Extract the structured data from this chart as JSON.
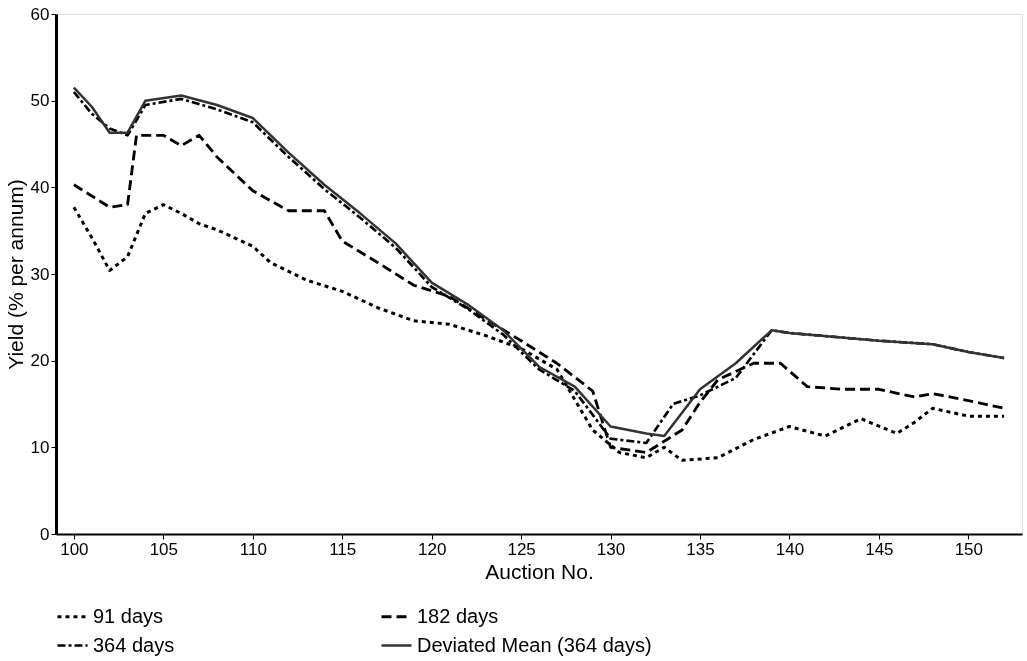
{
  "chart_data": {
    "type": "line",
    "xlabel": "Auction No.",
    "ylabel": "Yield (% per annum)",
    "xlim": [
      99,
      153
    ],
    "xticks": [
      100,
      105,
      110,
      115,
      120,
      125,
      130,
      135,
      140,
      145,
      150
    ],
    "ylim": [
      0,
      60
    ],
    "yticks": [
      0,
      10,
      20,
      30,
      40,
      50,
      60
    ],
    "grid": false,
    "legend": "bottom",
    "marker": "none",
    "series": [
      {
        "name": "91 days",
        "color": "#000000",
        "line_style": "dotted",
        "x": [
          100,
          101,
          102,
          103,
          104,
          105,
          106,
          107,
          108,
          110,
          111,
          113,
          115,
          117,
          119,
          121,
          123,
          125,
          127,
          129,
          130.5,
          132,
          133,
          134,
          136,
          138,
          140,
          142,
          144,
          146,
          147,
          148,
          150,
          152
        ],
        "values": [
          37.7,
          34.2,
          30.4,
          32,
          37,
          38,
          37,
          35.8,
          35.1,
          33.2,
          31.3,
          29.3,
          28,
          26.1,
          24.6,
          24.2,
          22.9,
          21.4,
          19,
          12,
          9.4,
          8.8,
          10,
          8.5,
          8.8,
          10.9,
          12.4,
          11.3,
          13.3,
          11.6,
          12.9,
          14.5,
          13.6,
          13.6
        ]
      },
      {
        "name": "182 days",
        "color": "#000000",
        "line_style": "dashed",
        "x": [
          100,
          102,
          103,
          103.5,
          105,
          106,
          107,
          108,
          110,
          112,
          114,
          115,
          117,
          119,
          121,
          123,
          125,
          127,
          129,
          130,
          132,
          134,
          135,
          136,
          138,
          139.5,
          141,
          143,
          145,
          147,
          148,
          150,
          152
        ],
        "values": [
          40.3,
          37.7,
          38,
          46,
          46,
          44.8,
          46,
          43.5,
          39.6,
          37.3,
          37.3,
          33.8,
          31.3,
          28.7,
          27.4,
          24.8,
          22.3,
          19.7,
          16.5,
          10,
          9.4,
          12,
          15.2,
          17.8,
          19.7,
          19.7,
          17,
          16.7,
          16.7,
          15.8,
          16.2,
          15.4,
          14.5
        ]
      },
      {
        "name": "364 days",
        "color": "#000000",
        "line_style": "dashdot",
        "x": [
          100,
          101,
          102,
          103,
          104,
          106,
          108,
          110,
          112,
          114,
          116,
          118,
          120,
          122,
          124,
          126,
          128,
          130,
          132,
          133.5,
          135,
          137,
          139,
          140,
          145,
          148,
          150,
          152
        ],
        "values": [
          51,
          48.5,
          46.8,
          46,
          49.5,
          50.2,
          49,
          47.5,
          43.5,
          39.8,
          36.5,
          33,
          28.5,
          26,
          23,
          19,
          16.5,
          11,
          10.5,
          15,
          16,
          18,
          23.5,
          23.2,
          22.3,
          21.9,
          21,
          20.3
        ]
      },
      {
        "name": "Deviated Mean (364 days)",
        "color": "#333333",
        "line_style": "solid",
        "x": [
          100,
          101,
          102,
          103,
          104,
          106,
          108,
          110,
          112,
          114,
          116,
          118,
          120,
          122,
          124,
          126,
          128,
          130,
          132,
          133,
          135,
          137,
          139,
          140,
          145,
          148,
          150,
          152
        ],
        "values": [
          51.5,
          49.3,
          46.3,
          46.3,
          50,
          50.6,
          49.5,
          48,
          44,
          40.3,
          37,
          33.5,
          29,
          26.5,
          23.5,
          19.3,
          17,
          12.4,
          11.6,
          11.3,
          16.7,
          19.7,
          23.5,
          23.2,
          22.3,
          21.9,
          21,
          20.3
        ]
      }
    ]
  }
}
